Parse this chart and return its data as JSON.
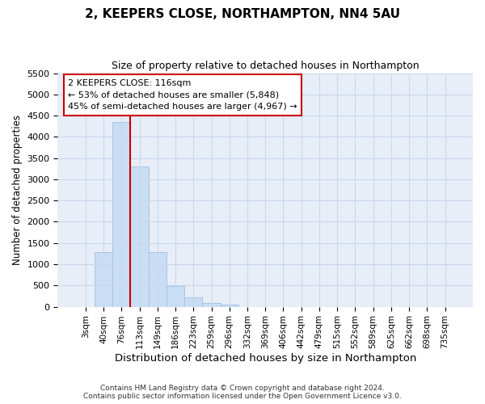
{
  "title": "2, KEEPERS CLOSE, NORTHAMPTON, NN4 5AU",
  "subtitle": "Size of property relative to detached houses in Northampton",
  "xlabel": "Distribution of detached houses by size in Northampton",
  "ylabel": "Number of detached properties",
  "footnote": "Contains HM Land Registry data © Crown copyright and database right 2024.\nContains public sector information licensed under the Open Government Licence v3.0.",
  "bar_labels": [
    "3sqm",
    "40sqm",
    "76sqm",
    "113sqm",
    "149sqm",
    "186sqm",
    "223sqm",
    "259sqm",
    "296sqm",
    "332sqm",
    "369sqm",
    "406sqm",
    "442sqm",
    "479sqm",
    "515sqm",
    "552sqm",
    "589sqm",
    "625sqm",
    "662sqm",
    "698sqm",
    "735sqm"
  ],
  "bar_values": [
    0,
    1280,
    4350,
    3300,
    1280,
    480,
    230,
    80,
    55,
    0,
    0,
    0,
    0,
    0,
    0,
    0,
    0,
    0,
    0,
    0,
    0
  ],
  "bar_color": "#c9ddf5",
  "bar_edge_color": "#a8c4e0",
  "grid_color": "#c8d8ee",
  "background_color": "#e8eef8",
  "vline_x": 2.5,
  "vline_color": "#cc0000",
  "annotation_text": "2 KEEPERS CLOSE: 116sqm\n← 53% of detached houses are smaller (5,848)\n45% of semi-detached houses are larger (4,967) →",
  "ylim": [
    0,
    5500
  ],
  "yticks": [
    0,
    500,
    1000,
    1500,
    2000,
    2500,
    3000,
    3500,
    4000,
    4500,
    5000,
    5500
  ]
}
